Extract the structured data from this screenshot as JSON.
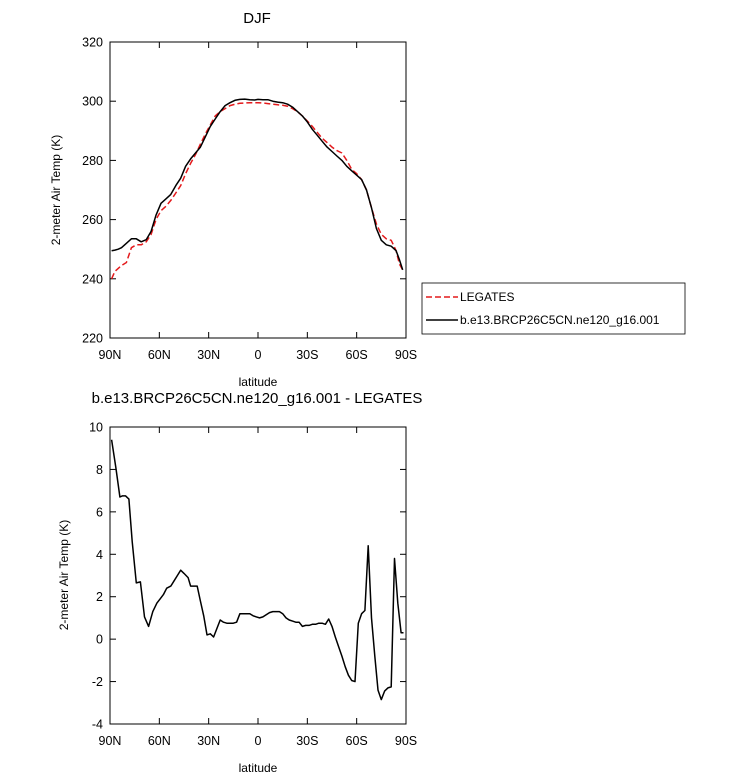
{
  "chart_data": [
    {
      "type": "line",
      "title": "DJF",
      "xlabel": "latitude",
      "ylabel": "2-meter Air Temp (K)",
      "xlim": [
        90,
        -90
      ],
      "ylim": [
        220,
        320
      ],
      "x_tick_values": [
        90,
        60,
        30,
        0,
        -30,
        -60,
        -90
      ],
      "x_tick_labels": [
        "90N",
        "60N",
        "30N",
        "0",
        "30S",
        "60S",
        "90S"
      ],
      "y_tick_values": [
        220,
        240,
        260,
        280,
        300,
        320
      ],
      "y_tick_labels": [
        "220",
        "240",
        "260",
        "280",
        "300",
        "320"
      ],
      "grid": false,
      "legend_position": "right",
      "series": [
        {
          "name": "LEGATES",
          "color": "#e41a1c",
          "style": "dashed",
          "x": [
            89,
            87,
            85,
            83,
            80,
            77,
            74,
            71,
            68,
            65,
            62,
            59,
            56,
            53,
            50,
            47,
            44,
            41,
            38,
            35,
            32,
            29,
            26,
            23,
            20,
            17,
            14,
            11,
            8,
            5,
            2,
            0,
            -3,
            -6,
            -9,
            -12,
            -15,
            -18,
            -21,
            -24,
            -27,
            -30,
            -33,
            -36,
            -39,
            -42,
            -45,
            -48,
            -51,
            -54,
            -57,
            -60,
            -63,
            -66,
            -69,
            -72,
            -75,
            -78,
            -81,
            -84,
            -86,
            -88
          ],
          "y": [
            240,
            242.5,
            243.5,
            244.5,
            245.5,
            250.5,
            251.5,
            251.5,
            252.5,
            255,
            260,
            263,
            264.5,
            266.5,
            269,
            271.5,
            275.5,
            279,
            282,
            285.5,
            289,
            292,
            295,
            296.5,
            297.5,
            298.5,
            299,
            299.3,
            299.4,
            299.5,
            299.5,
            299.5,
            299.4,
            299.2,
            299,
            298.8,
            298.6,
            298.3,
            297.5,
            296.5,
            295,
            293.3,
            291.5,
            289.5,
            287.5,
            286,
            284.5,
            283.3,
            282.5,
            280,
            277,
            275.5,
            273.5,
            270,
            264,
            258.5,
            255,
            253.5,
            253,
            249.5,
            245,
            243
          ]
        },
        {
          "name": "b.e13.BRCP26C5CN.ne120_g16.001",
          "color": "#000000",
          "style": "solid",
          "x": [
            89,
            87,
            85,
            83,
            80,
            77,
            74,
            71,
            68,
            65,
            62,
            59,
            56,
            53,
            50,
            47,
            44,
            41,
            38,
            35,
            32,
            29,
            26,
            23,
            20,
            17,
            14,
            11,
            8,
            5,
            2,
            0,
            -3,
            -6,
            -9,
            -12,
            -15,
            -18,
            -21,
            -24,
            -27,
            -30,
            -33,
            -36,
            -39,
            -42,
            -45,
            -48,
            -51,
            -54,
            -57,
            -60,
            -63,
            -66,
            -69,
            -72,
            -75,
            -78,
            -81,
            -84,
            -86,
            -88
          ],
          "y": [
            249.5,
            249.7,
            250,
            250.5,
            252,
            253.5,
            253.5,
            252.5,
            253.2,
            256,
            261.5,
            265.5,
            267,
            268.5,
            271.5,
            274,
            278,
            280.5,
            282.5,
            284.5,
            288,
            291.5,
            294,
            296.5,
            298.5,
            299.5,
            300.3,
            300.6,
            300.7,
            300.5,
            300.4,
            300.6,
            300.5,
            300.5,
            300,
            299.7,
            299.5,
            299,
            298,
            296.5,
            295,
            293,
            290.5,
            288.5,
            286.5,
            284.5,
            283,
            281.5,
            280,
            278,
            276.5,
            275,
            273.5,
            270,
            264,
            257,
            253,
            251.5,
            251,
            249.5,
            246.5,
            243
          ]
        }
      ]
    },
    {
      "type": "line",
      "title": "b.e13.BRCP26C5CN.ne120_g16.001 - LEGATES",
      "xlabel": "latitude",
      "ylabel": "2-meter Air Temp (K)",
      "xlim": [
        90,
        -90
      ],
      "ylim": [
        -4,
        10
      ],
      "x_tick_values": [
        90,
        60,
        30,
        0,
        -30,
        -60,
        -90
      ],
      "x_tick_labels": [
        "90N",
        "60N",
        "30N",
        "0",
        "30S",
        "60S",
        "90S"
      ],
      "y_tick_values": [
        -4,
        -2,
        0,
        2,
        4,
        6,
        8,
        10
      ],
      "y_tick_labels": [
        "-4",
        "-2",
        "0",
        "2",
        "4",
        "6",
        "8",
        "10"
      ],
      "grid": false,
      "series": [
        {
          "color": "#000000",
          "style": "solid",
          "x": [
            89,
            86.5,
            84,
            82.5,
            80.5,
            78.5,
            76.5,
            74,
            71.5,
            69,
            66.5,
            64,
            61.5,
            59.5,
            57.5,
            55.5,
            53,
            51,
            49,
            47,
            45,
            42.5,
            41,
            39,
            37,
            35,
            33,
            31,
            29,
            27,
            25,
            23,
            21,
            19,
            17,
            15,
            13,
            11,
            9,
            7,
            5,
            3,
            1,
            -1,
            -3,
            -5,
            -7,
            -9,
            -11,
            -13,
            -15,
            -17,
            -19,
            -21,
            -23,
            -25,
            -27,
            -29,
            -31,
            -33,
            -35,
            -37,
            -39,
            -41,
            -43,
            -45,
            -47,
            -49,
            -51,
            -53,
            -55,
            -57,
            -59,
            -61,
            -63,
            -65,
            -67,
            -69,
            -71,
            -73,
            -75,
            -77,
            -79,
            -81,
            -83,
            -85,
            -87,
            -88.5
          ],
          "y": [
            9.4,
            8.1,
            6.7,
            6.75,
            6.75,
            6.6,
            4.6,
            2.65,
            2.7,
            1.05,
            0.6,
            1.3,
            1.7,
            1.9,
            2.1,
            2.4,
            2.5,
            2.75,
            3.0,
            3.25,
            3.1,
            2.9,
            2.5,
            2.5,
            2.5,
            1.8,
            1.1,
            0.2,
            0.25,
            0.1,
            0.5,
            0.9,
            0.8,
            0.75,
            0.75,
            0.75,
            0.8,
            1.2,
            1.2,
            1.2,
            1.2,
            1.1,
            1.05,
            1.0,
            1.05,
            1.15,
            1.25,
            1.3,
            1.3,
            1.3,
            1.2,
            1.0,
            0.9,
            0.85,
            0.8,
            0.8,
            0.6,
            0.65,
            0.65,
            0.7,
            0.7,
            0.75,
            0.75,
            0.7,
            0.95,
            0.6,
            0.1,
            -0.35,
            -0.8,
            -1.3,
            -1.7,
            -1.95,
            -2.0,
            0.75,
            1.2,
            1.35,
            4.4,
            1.0,
            -0.8,
            -2.4,
            -2.85,
            -2.45,
            -2.3,
            -2.25,
            3.8,
            1.7,
            0.3,
            0.3
          ]
        }
      ]
    }
  ],
  "legend": {
    "entries": [
      {
        "label": "LEGATES",
        "series_ref": 0
      },
      {
        "label": "b.e13.BRCP26C5CN.ne120_g16.001",
        "series_ref": 1
      }
    ]
  }
}
